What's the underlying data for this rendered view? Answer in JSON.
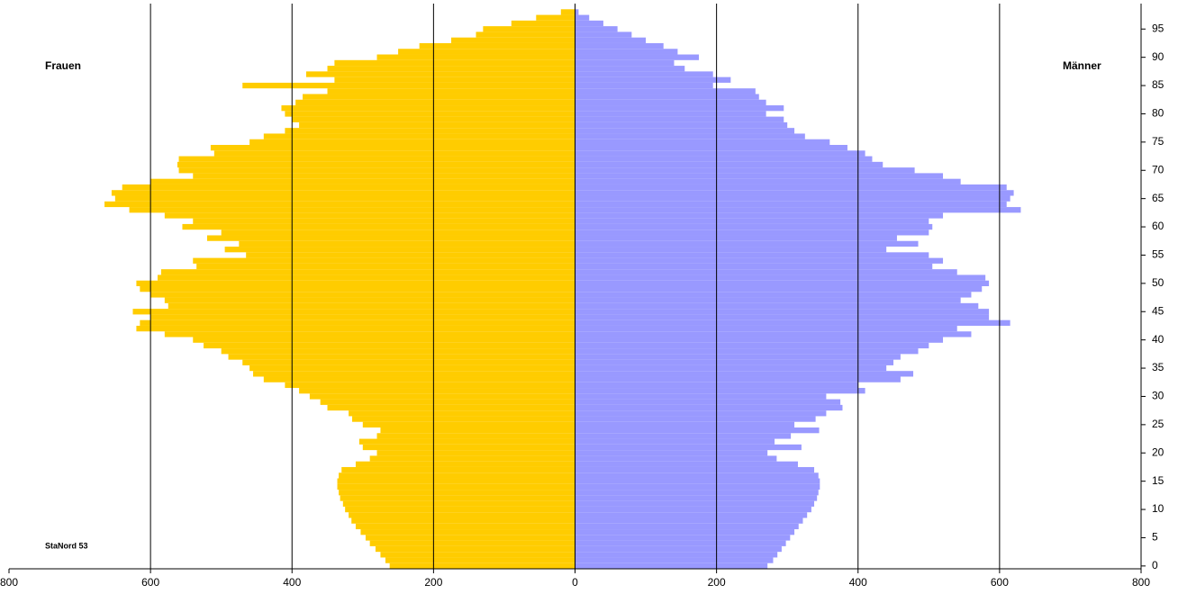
{
  "chart_data": {
    "type": "pyramid",
    "left_label": "Frauen",
    "right_label": "Männer",
    "note": "StaNord 53",
    "y": [
      0,
      1,
      2,
      3,
      4,
      5,
      6,
      7,
      8,
      9,
      10,
      11,
      12,
      13,
      14,
      15,
      16,
      17,
      18,
      19,
      20,
      21,
      22,
      23,
      24,
      25,
      26,
      27,
      28,
      29,
      30,
      31,
      32,
      33,
      34,
      35,
      36,
      37,
      38,
      39,
      40,
      41,
      42,
      43,
      44,
      45,
      46,
      47,
      48,
      49,
      50,
      51,
      52,
      53,
      54,
      55,
      56,
      57,
      58,
      59,
      60,
      61,
      62,
      63,
      64,
      65,
      66,
      67,
      68,
      69,
      70,
      71,
      72,
      73,
      74,
      75,
      76,
      77,
      78,
      79,
      80,
      81,
      82,
      83,
      84,
      85,
      86,
      87,
      88,
      89,
      90,
      91,
      92,
      93,
      94,
      95,
      96,
      97,
      98
    ],
    "series": [
      {
        "name": "Frauen",
        "side": "left",
        "color": "#ffcc00",
        "values": [
          262,
          268,
          275,
          282,
          290,
          296,
          303,
          310,
          316,
          320,
          325,
          328,
          332,
          334,
          336,
          336,
          334,
          330,
          310,
          290,
          280,
          300,
          305,
          280,
          275,
          300,
          315,
          320,
          350,
          360,
          375,
          390,
          410,
          440,
          455,
          460,
          470,
          490,
          500,
          525,
          540,
          580,
          620,
          615,
          600,
          625,
          575,
          580,
          600,
          615,
          620,
          590,
          585,
          535,
          540,
          465,
          495,
          475,
          520,
          500,
          555,
          540,
          580,
          630,
          665,
          650,
          655,
          640,
          600,
          540,
          560,
          562,
          560,
          510,
          515,
          460,
          440,
          410,
          390,
          400,
          410,
          415,
          395,
          385,
          350,
          470,
          340,
          380,
          350,
          340,
          280,
          250,
          220,
          175,
          140,
          130,
          90,
          55,
          20
        ]
      },
      {
        "name": "Männer",
        "side": "right",
        "color": "#9999ff",
        "values": [
          272,
          280,
          286,
          292,
          298,
          304,
          310,
          316,
          322,
          328,
          334,
          338,
          342,
          344,
          346,
          346,
          344,
          338,
          315,
          285,
          272,
          320,
          282,
          305,
          345,
          310,
          340,
          355,
          378,
          375,
          355,
          410,
          400,
          460,
          478,
          440,
          450,
          460,
          485,
          500,
          520,
          560,
          540,
          615,
          585,
          585,
          570,
          545,
          560,
          575,
          585,
          580,
          540,
          505,
          520,
          500,
          440,
          485,
          455,
          500,
          505,
          500,
          520,
          630,
          610,
          615,
          620,
          610,
          545,
          520,
          480,
          435,
          420,
          410,
          385,
          360,
          325,
          310,
          300,
          295,
          270,
          295,
          270,
          260,
          255,
          195,
          220,
          195,
          155,
          140,
          175,
          145,
          125,
          100,
          80,
          60,
          40,
          20,
          5
        ]
      }
    ],
    "xlim": [
      -800,
      800
    ],
    "xticks": [
      {
        "value": -800,
        "label": "800"
      },
      {
        "value": -600,
        "label": "600"
      },
      {
        "value": -400,
        "label": "400"
      },
      {
        "value": -200,
        "label": "200"
      },
      0,
      200,
      400,
      600,
      800
    ],
    "ylim": [
      -0.5,
      99.5
    ],
    "yticks": [
      0,
      5,
      10,
      15,
      20,
      25,
      30,
      35,
      40,
      45,
      50,
      55,
      60,
      65,
      70,
      75,
      80,
      85,
      90,
      95
    ],
    "grid": true
  }
}
